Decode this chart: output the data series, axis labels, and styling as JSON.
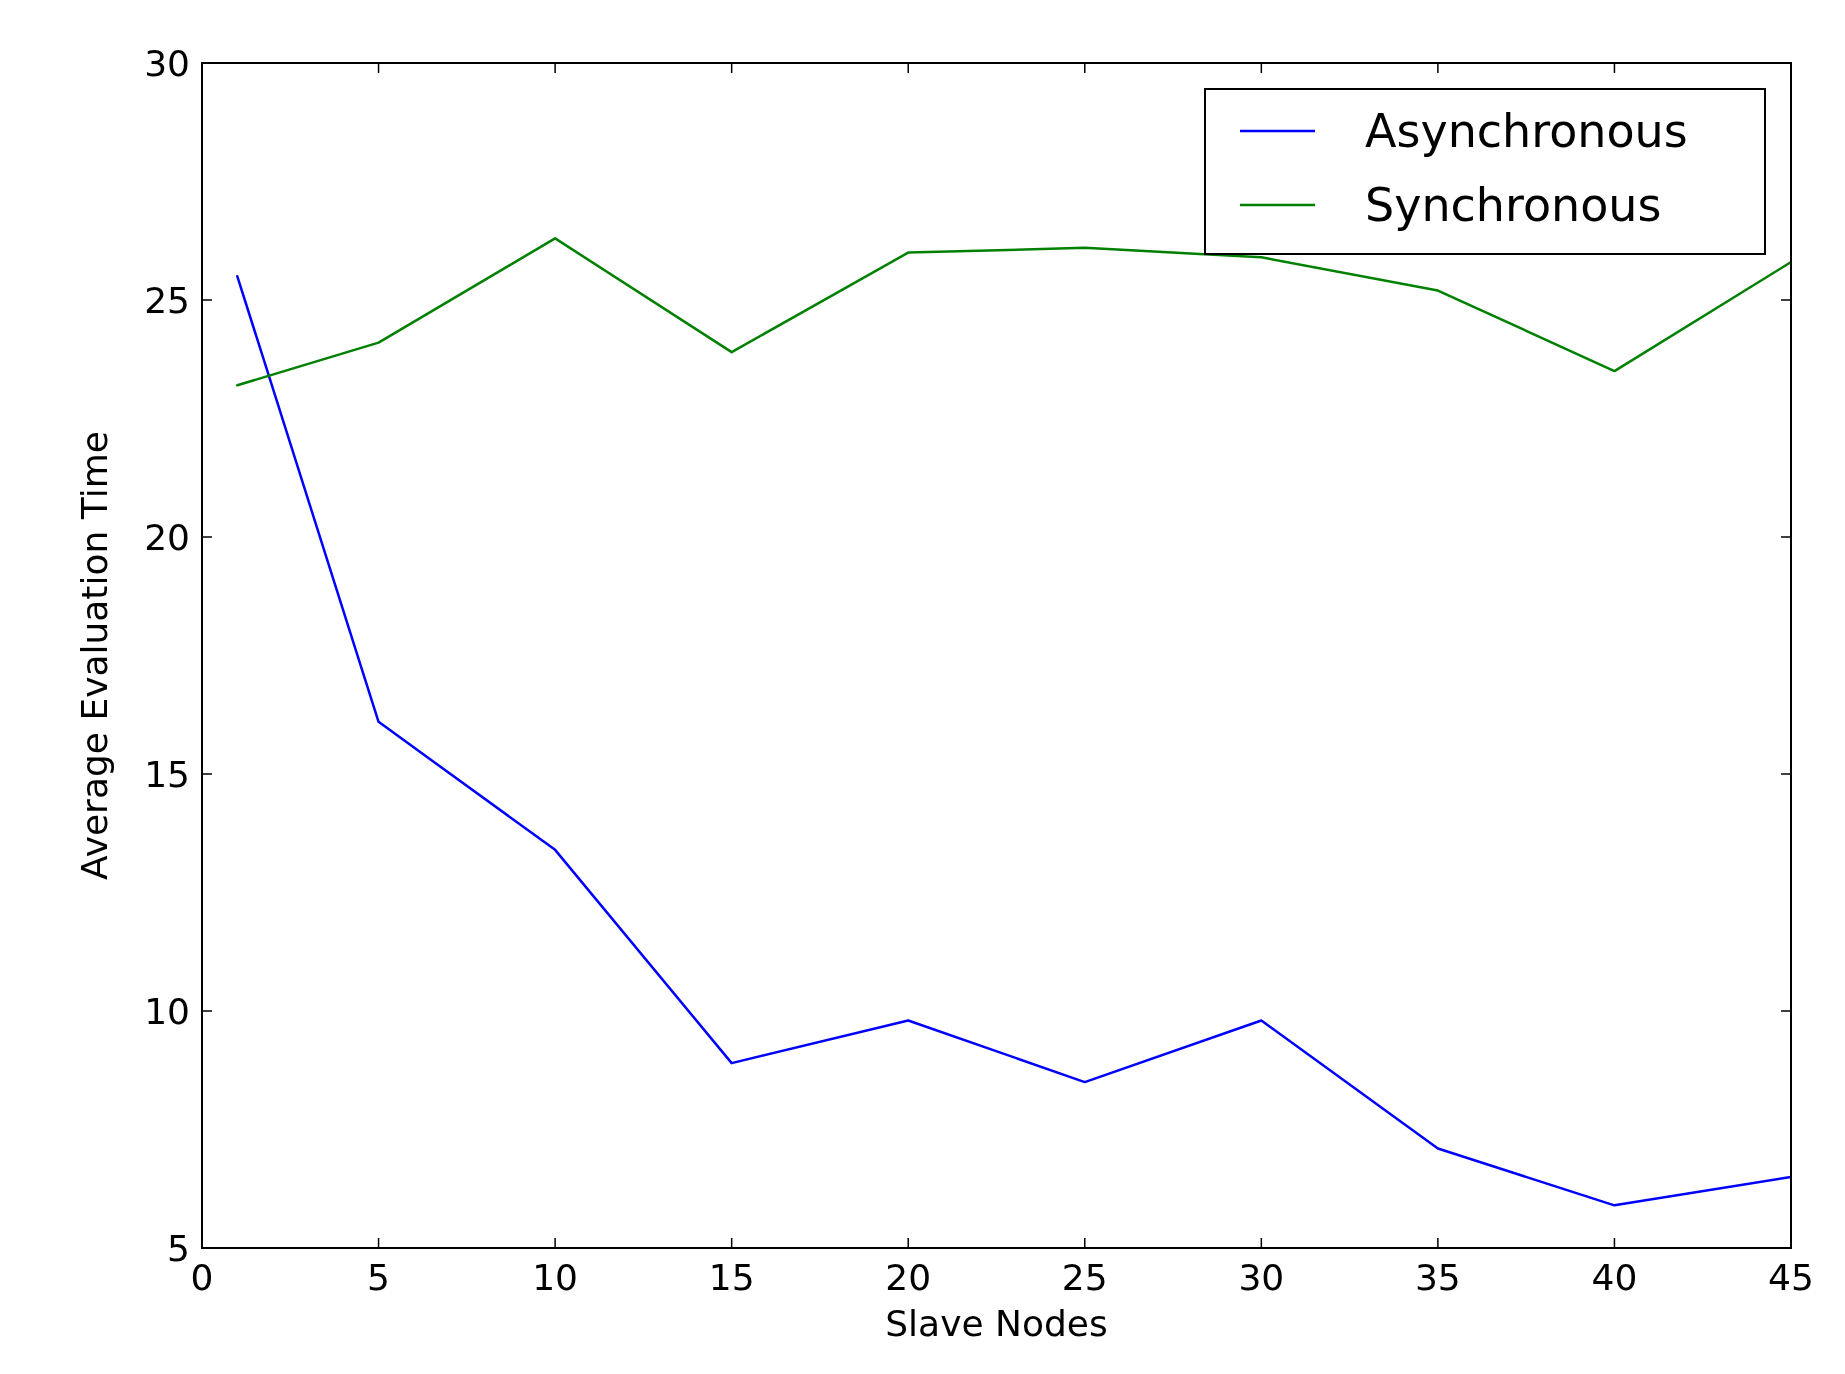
{
  "chart_data": {
    "type": "line",
    "xlabel": "Slave Nodes",
    "ylabel": "Average Evaluation Time",
    "x": [
      1,
      5,
      10,
      15,
      20,
      25,
      30,
      35,
      40,
      45
    ],
    "series": [
      {
        "name": "Asynchronous",
        "color": "#0000ff",
        "values": [
          25.5,
          16.1,
          13.4,
          8.9,
          9.8,
          8.5,
          9.8,
          7.1,
          5.9,
          6.5
        ]
      },
      {
        "name": "Synchronous",
        "color": "#008000",
        "values": [
          23.2,
          24.1,
          26.3,
          23.9,
          26.0,
          26.1,
          25.9,
          25.2,
          23.5,
          25.8
        ]
      }
    ],
    "xlim": [
      0,
      45
    ],
    "xticks": [
      0,
      5,
      10,
      15,
      20,
      25,
      30,
      35,
      40,
      45
    ],
    "ylim": [
      5,
      30
    ],
    "yticks": [
      5,
      10,
      15,
      20,
      25,
      30
    ],
    "grid": false,
    "legend": "top right",
    "marker": "none",
    "line_style": "solid"
  }
}
